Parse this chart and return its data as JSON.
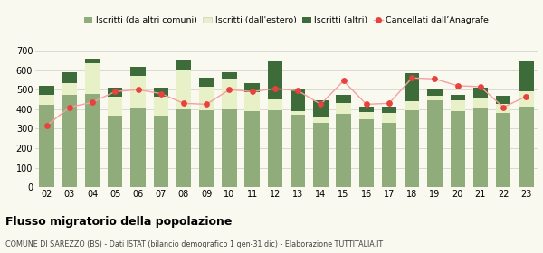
{
  "years": [
    "02",
    "03",
    "04",
    "05",
    "06",
    "07",
    "08",
    "09",
    "10",
    "11",
    "12",
    "13",
    "14",
    "15",
    "16",
    "17",
    "18",
    "19",
    "20",
    "21",
    "22",
    "23"
  ],
  "iscritti_altri_comuni": [
    420,
    475,
    480,
    365,
    410,
    365,
    400,
    395,
    400,
    390,
    395,
    370,
    330,
    375,
    350,
    330,
    395,
    445,
    390,
    410,
    380,
    415
  ],
  "iscritti_estero": [
    55,
    60,
    155,
    100,
    160,
    100,
    205,
    120,
    155,
    95,
    55,
    20,
    30,
    55,
    35,
    50,
    45,
    25,
    55,
    50,
    45,
    75
  ],
  "iscritti_altri": [
    45,
    55,
    25,
    45,
    45,
    45,
    50,
    45,
    35,
    50,
    200,
    110,
    85,
    45,
    30,
    35,
    145,
    30,
    30,
    50,
    45,
    155
  ],
  "cancellati": [
    315,
    410,
    435,
    490,
    500,
    480,
    430,
    425,
    500,
    490,
    505,
    495,
    425,
    545,
    425,
    430,
    560,
    555,
    520,
    515,
    410,
    465
  ],
  "color_altri_comuni": "#8fac7a",
  "color_estero": "#e8f0c8",
  "color_altri": "#3d6b3a",
  "color_cancellati": "#e8413e",
  "color_cancellati_line": "#f4a0a0",
  "title": "Flusso migratorio della popolazione",
  "subtitle": "COMUNE DI SAREZZO (BS) - Dati ISTAT (bilancio demografico 1 gen-31 dic) - Elaborazione TUTTITALIA.IT",
  "legend_labels": [
    "Iscritti (da altri comuni)",
    "Iscritti (dall'estero)",
    "Iscritti (altri)",
    "Cancellati dall’Anagrafe"
  ],
  "ylim": [
    0,
    700
  ],
  "yticks": [
    0,
    100,
    200,
    300,
    400,
    500,
    600,
    700
  ],
  "bg_color": "#f9f9f0"
}
